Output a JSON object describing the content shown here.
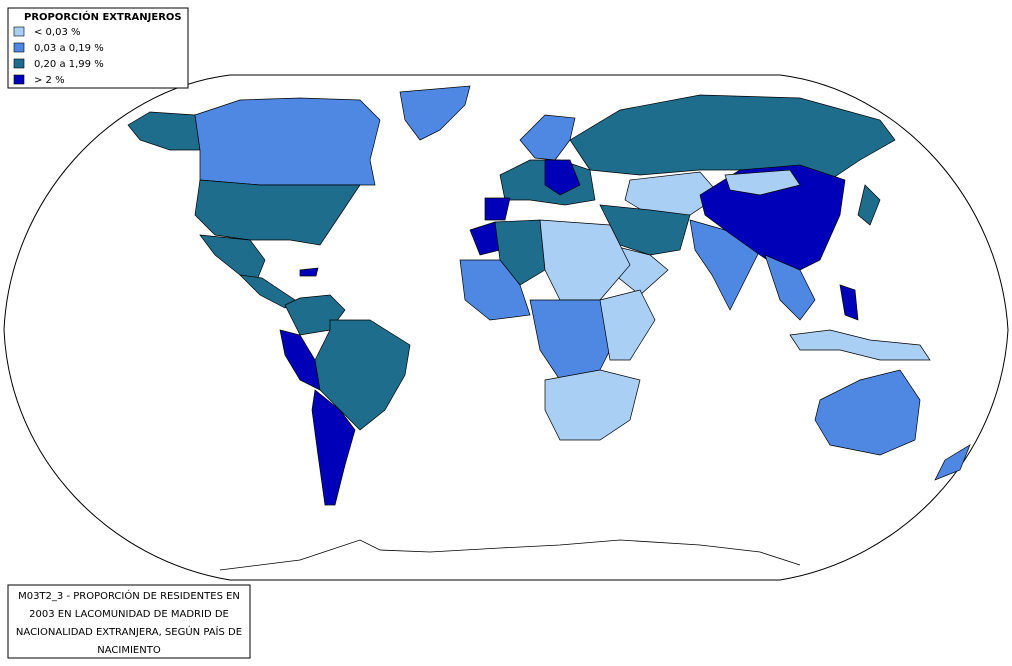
{
  "legend": {
    "title": "PROPORCIÓN EXTRANJEROS",
    "items": [
      {
        "label": "< 0,03 %",
        "color": "#a9cff4"
      },
      {
        "label": "0,03 a 0,19 %",
        "color": "#4f88e3"
      },
      {
        "label": "0,20 a 1,99 %",
        "color": "#1f6d8c"
      },
      {
        "label": "> 2 %",
        "color": "#0000b8"
      }
    ]
  },
  "caption": {
    "lines": [
      "M03T2_3 - PROPORCIÓN DE RESIDENTES EN",
      "2003 EN LACOMUNIDAD DE MADRID DE",
      "NACIONALIDAD EXTRANJERA, SEGÚN PAÍS DE",
      "NACIMIENTO"
    ]
  }
}
